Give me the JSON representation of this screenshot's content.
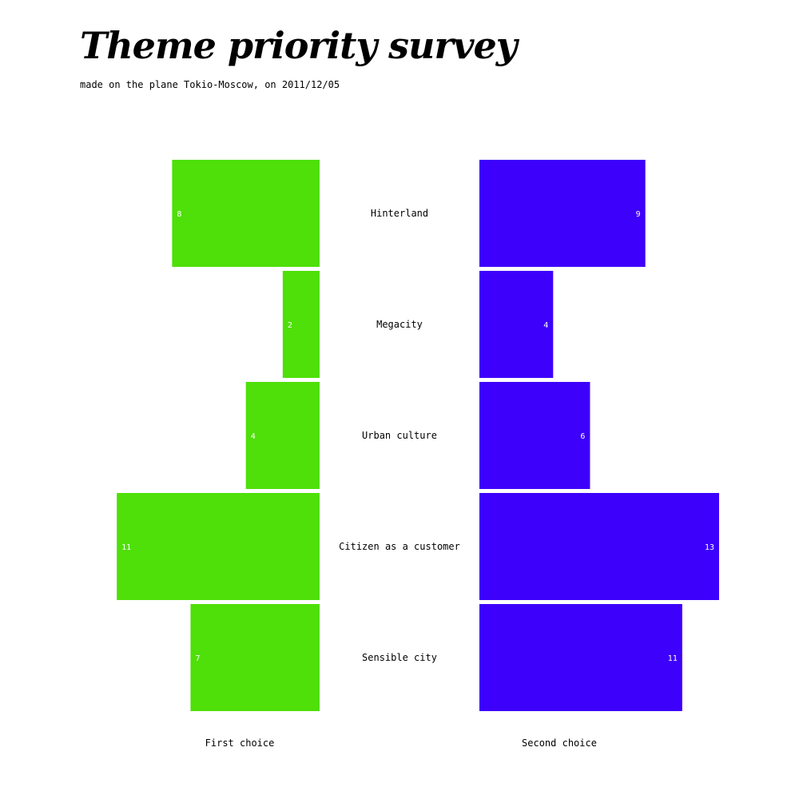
{
  "title": "Theme priority survey",
  "subtitle": "made on the plane Tokio-Moscow, on 2011/12/05",
  "colors": {
    "first": "#4fdf09",
    "second": "#3d00fa",
    "value_label": "#ffffff",
    "text": "#000000"
  },
  "chart_data": {
    "type": "bar",
    "orientation": "horizontal-diverging",
    "categories": [
      "Hinterland",
      "Megacity",
      "Urban culture",
      "Citizen as a customer",
      "Sensible city"
    ],
    "series": [
      {
        "name": "First choice",
        "values": [
          8,
          2,
          4,
          11,
          7
        ]
      },
      {
        "name": "Second choice",
        "values": [
          9,
          4,
          6,
          13,
          11
        ]
      }
    ],
    "title": "Theme priority survey",
    "subtitle": "made on the plane Tokio-Moscow, on 2011/12/05",
    "xlim": [
      0,
      14
    ],
    "grid": false,
    "legend": "bottom"
  }
}
